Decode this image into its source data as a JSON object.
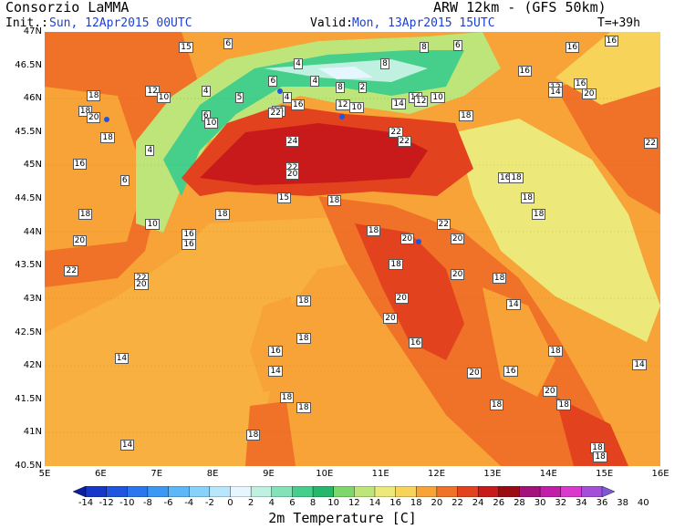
{
  "header": {
    "org": "Consorzio LaMMA",
    "model": "ARW 12km - (GFS 50km)",
    "init_label": "Init.:",
    "init_value": "Sun, 12Apr2015 00UTC",
    "valid_label": "Valid:",
    "valid_value": "Mon, 13Apr2015 15UTC",
    "lead": "T=+39h"
  },
  "axes": {
    "lat_labels": [
      "47N",
      "46.5N",
      "46N",
      "45.5N",
      "45N",
      "44.5N",
      "44N",
      "43.5N",
      "43N",
      "42.5N",
      "42N",
      "41.5N",
      "41N",
      "40.5N"
    ],
    "lon_labels": [
      "5E",
      "6E",
      "7E",
      "8E",
      "9E",
      "10E",
      "11E",
      "12E",
      "13E",
      "14E",
      "15E",
      "16E"
    ],
    "lat_range": [
      40.5,
      47
    ],
    "lon_range": [
      5,
      16
    ]
  },
  "colorbar": {
    "title": "2m Temperature [C]",
    "ticks": [
      "-14",
      "-12",
      "-10",
      "-8",
      "-6",
      "-4",
      "-2",
      "0",
      "2",
      "4",
      "6",
      "8",
      "10",
      "12",
      "14",
      "16",
      "18",
      "20",
      "22",
      "24",
      "26",
      "28",
      "30",
      "32",
      "34",
      "36",
      "38",
      "40"
    ],
    "colors": [
      "#0a1fa0",
      "#1538c8",
      "#1f55e0",
      "#2a76ef",
      "#3c98f5",
      "#5cb7f8",
      "#86d2fb",
      "#b8e6fd",
      "#e5f6fe",
      "#bff0e0",
      "#84e2b8",
      "#46cf8a",
      "#25b86a",
      "#7dd86c",
      "#bde57a",
      "#ece97a",
      "#f7d35a",
      "#f7a338",
      "#f07128",
      "#e3421f",
      "#c81a1a",
      "#9b0c12",
      "#a3117a",
      "#c21da8",
      "#d93acb",
      "#a54ed8",
      "#7e57d8"
    ],
    "colors_note": ""
  },
  "map_labels": [
    {
      "v": "15",
      "lon": 7.4,
      "lat": 46.85
    },
    {
      "v": "6",
      "lon": 8.2,
      "lat": 46.9
    },
    {
      "v": "8",
      "lon": 11.7,
      "lat": 46.85
    },
    {
      "v": "6",
      "lon": 12.3,
      "lat": 46.88
    },
    {
      "v": "16",
      "lon": 14.3,
      "lat": 46.85
    },
    {
      "v": "16",
      "lon": 15.0,
      "lat": 46.95
    },
    {
      "v": "18",
      "lon": 16.0,
      "lat": 46.95
    },
    {
      "v": "4",
      "lon": 9.45,
      "lat": 46.6
    },
    {
      "v": "8",
      "lon": 11.0,
      "lat": 46.6
    },
    {
      "v": "16",
      "lon": 13.45,
      "lat": 46.5
    },
    {
      "v": "12",
      "lon": 6.8,
      "lat": 46.2
    },
    {
      "v": "10",
      "lon": 7.0,
      "lat": 46.1
    },
    {
      "v": "4",
      "lon": 7.8,
      "lat": 46.2
    },
    {
      "v": "5",
      "lon": 8.4,
      "lat": 46.1
    },
    {
      "v": "6",
      "lon": 9.0,
      "lat": 46.35
    },
    {
      "v": "4",
      "lon": 9.25,
      "lat": 46.1
    },
    {
      "v": "4",
      "lon": 9.75,
      "lat": 46.35
    },
    {
      "v": "8",
      "lon": 10.2,
      "lat": 46.25
    },
    {
      "v": "2",
      "lon": 10.6,
      "lat": 46.25
    },
    {
      "v": "16",
      "lon": 11.5,
      "lat": 46.1
    },
    {
      "v": "10",
      "lon": 11.9,
      "lat": 46.1
    },
    {
      "v": "12",
      "lon": 14.0,
      "lat": 46.25
    },
    {
      "v": "14",
      "lon": 14.0,
      "lat": 46.18
    },
    {
      "v": "16",
      "lon": 14.45,
      "lat": 46.3
    },
    {
      "v": "20",
      "lon": 14.6,
      "lat": 46.15
    },
    {
      "v": "18",
      "lon": 5.75,
      "lat": 46.12
    },
    {
      "v": "18",
      "lon": 5.6,
      "lat": 45.9
    },
    {
      "v": "20",
      "lon": 5.75,
      "lat": 45.8
    },
    {
      "v": "16",
      "lon": 9.05,
      "lat": 45.9
    },
    {
      "v": "16",
      "lon": 9.4,
      "lat": 45.99
    },
    {
      "v": "12",
      "lon": 10.2,
      "lat": 45.99
    },
    {
      "v": "10",
      "lon": 10.45,
      "lat": 45.95
    },
    {
      "v": "14",
      "lon": 11.2,
      "lat": 46.0
    },
    {
      "v": "12",
      "lon": 11.6,
      "lat": 46.05
    },
    {
      "v": "18",
      "lon": 12.4,
      "lat": 45.82
    },
    {
      "v": "22",
      "lon": 9.0,
      "lat": 45.86
    },
    {
      "v": "6",
      "lon": 7.8,
      "lat": 45.82
    },
    {
      "v": "10",
      "lon": 7.85,
      "lat": 45.72
    },
    {
      "v": "18",
      "lon": 6.0,
      "lat": 45.5
    },
    {
      "v": "4",
      "lon": 6.8,
      "lat": 45.3
    },
    {
      "v": "24",
      "lon": 9.3,
      "lat": 45.44
    },
    {
      "v": "22",
      "lon": 11.15,
      "lat": 45.58
    },
    {
      "v": "22",
      "lon": 11.3,
      "lat": 45.45
    },
    {
      "v": "22",
      "lon": 15.7,
      "lat": 45.42
    },
    {
      "v": "16",
      "lon": 5.5,
      "lat": 45.1
    },
    {
      "v": "22",
      "lon": 9.3,
      "lat": 45.05
    },
    {
      "v": "20",
      "lon": 9.3,
      "lat": 44.95
    },
    {
      "v": "6",
      "lon": 6.35,
      "lat": 44.85
    },
    {
      "v": "16",
      "lon": 13.1,
      "lat": 44.9
    },
    {
      "v": "18",
      "lon": 13.3,
      "lat": 44.9
    },
    {
      "v": "15",
      "lon": 9.15,
      "lat": 44.6
    },
    {
      "v": "18",
      "lon": 10.05,
      "lat": 44.55
    },
    {
      "v": "18",
      "lon": 13.5,
      "lat": 44.6
    },
    {
      "v": "18",
      "lon": 13.7,
      "lat": 44.35
    },
    {
      "v": "18",
      "lon": 5.6,
      "lat": 44.35
    },
    {
      "v": "18",
      "lon": 8.05,
      "lat": 44.35
    },
    {
      "v": "10",
      "lon": 6.8,
      "lat": 44.2
    },
    {
      "v": "16",
      "lon": 7.45,
      "lat": 44.05
    },
    {
      "v": "16",
      "lon": 7.45,
      "lat": 43.9
    },
    {
      "v": "18",
      "lon": 10.75,
      "lat": 44.1
    },
    {
      "v": "22",
      "lon": 12.0,
      "lat": 44.2
    },
    {
      "v": "20",
      "lon": 5.5,
      "lat": 43.95
    },
    {
      "v": "20",
      "lon": 11.35,
      "lat": 43.98
    },
    {
      "v": "20",
      "lon": 12.25,
      "lat": 43.98
    },
    {
      "v": "22",
      "lon": 5.35,
      "lat": 43.5
    },
    {
      "v": "22",
      "lon": 6.6,
      "lat": 43.4
    },
    {
      "v": "20",
      "lon": 6.6,
      "lat": 43.3
    },
    {
      "v": "20",
      "lon": 12.25,
      "lat": 43.45
    },
    {
      "v": "18",
      "lon": 13.0,
      "lat": 43.4
    },
    {
      "v": "18",
      "lon": 11.15,
      "lat": 43.6
    },
    {
      "v": "20",
      "lon": 11.25,
      "lat": 43.1
    },
    {
      "v": "18",
      "lon": 9.5,
      "lat": 43.05
    },
    {
      "v": "14",
      "lon": 13.25,
      "lat": 43.0
    },
    {
      "v": "20",
      "lon": 11.05,
      "lat": 42.8
    },
    {
      "v": "18",
      "lon": 9.5,
      "lat": 42.5
    },
    {
      "v": "16",
      "lon": 11.5,
      "lat": 42.42
    },
    {
      "v": "16",
      "lon": 9.0,
      "lat": 42.3
    },
    {
      "v": "14",
      "lon": 6.25,
      "lat": 42.2
    },
    {
      "v": "18",
      "lon": 14.0,
      "lat": 42.3
    },
    {
      "v": "14",
      "lon": 9.0,
      "lat": 42.0
    },
    {
      "v": "20",
      "lon": 12.55,
      "lat": 41.98
    },
    {
      "v": "16",
      "lon": 13.2,
      "lat": 42.0
    },
    {
      "v": "14",
      "lon": 15.5,
      "lat": 42.1
    },
    {
      "v": "20",
      "lon": 13.9,
      "lat": 41.7
    },
    {
      "v": "18",
      "lon": 12.95,
      "lat": 41.5
    },
    {
      "v": "18",
      "lon": 14.15,
      "lat": 41.5
    },
    {
      "v": "18",
      "lon": 9.5,
      "lat": 41.45
    },
    {
      "v": "18",
      "lon": 9.2,
      "lat": 41.6
    },
    {
      "v": "20",
      "lon": 15.8,
      "lat": 41.35
    },
    {
      "v": "18",
      "lon": 8.6,
      "lat": 41.05
    },
    {
      "v": "14",
      "lon": 6.35,
      "lat": 40.9
    },
    {
      "v": "18",
      "lon": 14.75,
      "lat": 40.85
    },
    {
      "v": "18",
      "lon": 14.8,
      "lat": 40.72
    }
  ]
}
